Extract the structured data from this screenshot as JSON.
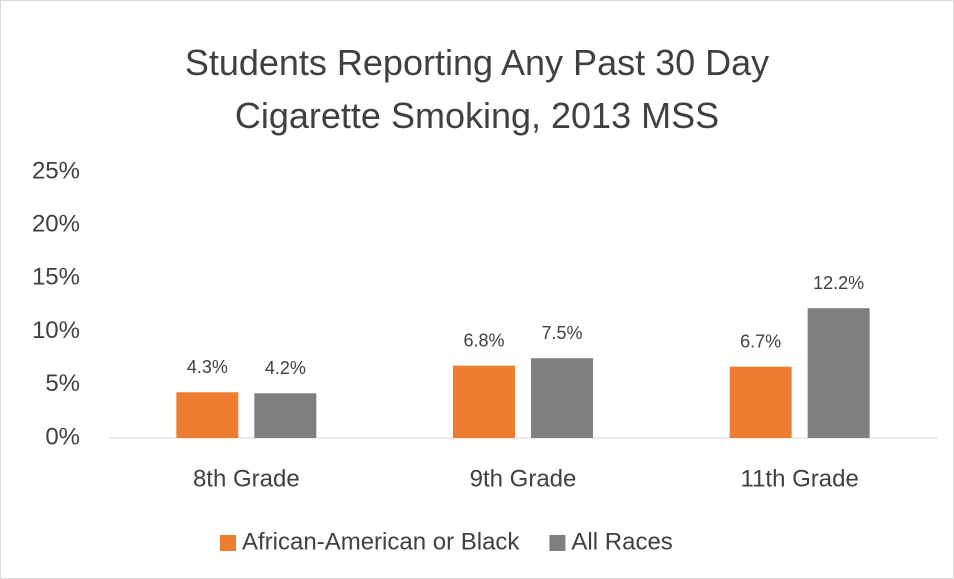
{
  "chart_data": {
    "type": "bar",
    "title": "Students Reporting Any Past 30 Day Cigarette Smoking, 2013 MSS",
    "categories": [
      "8th Grade",
      "9th Grade",
      "11th Grade"
    ],
    "series": [
      {
        "name": "African-American or Black",
        "color": "#ed7d31",
        "values": [
          4.3,
          6.8,
          6.7
        ],
        "value_labels": [
          "4.3%",
          "6.8%",
          "6.7%"
        ]
      },
      {
        "name": "All Races",
        "color": "#7f7f7f",
        "values": [
          4.2,
          7.5,
          12.2
        ],
        "value_labels": [
          "4.2%",
          "7.5%",
          "12.2%"
        ]
      }
    ],
    "ylim": [
      0,
      25
    ],
    "yticks": [
      {
        "value": 0,
        "label": "0%"
      },
      {
        "value": 5,
        "label": "5%"
      },
      {
        "value": 10,
        "label": "10%"
      },
      {
        "value": 15,
        "label": "15%"
      },
      {
        "value": 20,
        "label": "20%"
      },
      {
        "value": 25,
        "label": "25%"
      }
    ],
    "grid": false,
    "legend": "bottom"
  }
}
